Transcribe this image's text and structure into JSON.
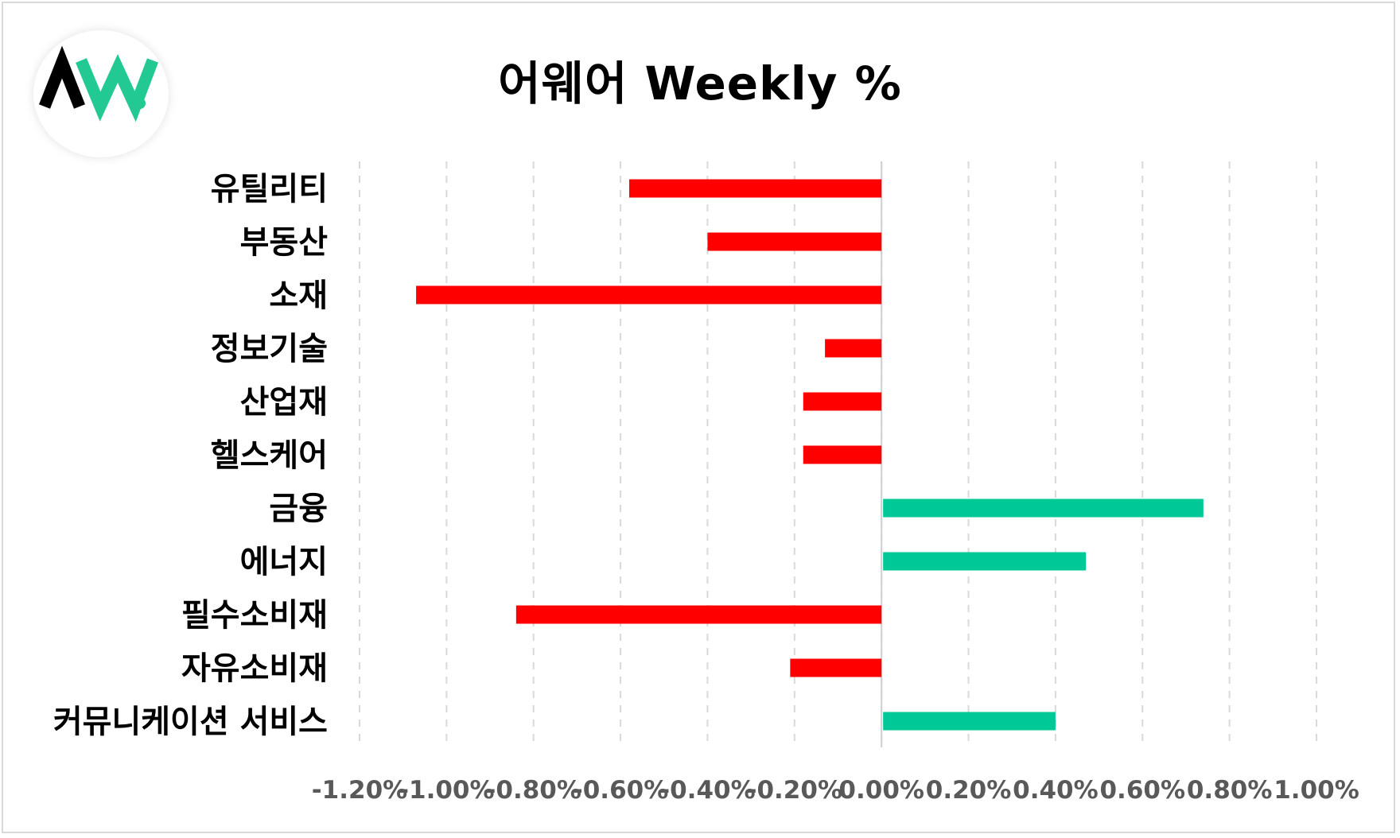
{
  "title": "어웨어 Weekly %",
  "colors": {
    "negative": "#ff0000",
    "positive": "#00c896",
    "grid": "#d9d9d9",
    "logo_dark": "#000000",
    "logo_accent": "#22c993"
  },
  "logo": {
    "icon": "aw-logo-icon"
  },
  "chart_data": {
    "type": "bar",
    "orientation": "horizontal",
    "categories": [
      "유틸리티",
      "부동산",
      "소재",
      "정보기술",
      "산업재",
      "헬스케어",
      "금융",
      "에너지",
      "필수소비재",
      "자유소비재",
      "커뮤니케이션 서비스"
    ],
    "values": [
      -0.58,
      -0.4,
      -1.07,
      -0.13,
      -0.18,
      -0.18,
      0.74,
      0.47,
      -0.84,
      -0.21,
      0.4
    ],
    "title": "어웨어 Weekly %",
    "xlabel": "",
    "ylabel": "",
    "xlim": [
      -1.2,
      1.0
    ],
    "x_ticks": [
      "-1.20%",
      "-1.00%",
      "-0.80%",
      "-0.60%",
      "-0.40%",
      "-0.20%",
      "0.00%",
      "0.20%",
      "0.40%",
      "0.60%",
      "0.80%",
      "1.00%"
    ],
    "grid": "vertical-dashed",
    "legend": "none"
  }
}
